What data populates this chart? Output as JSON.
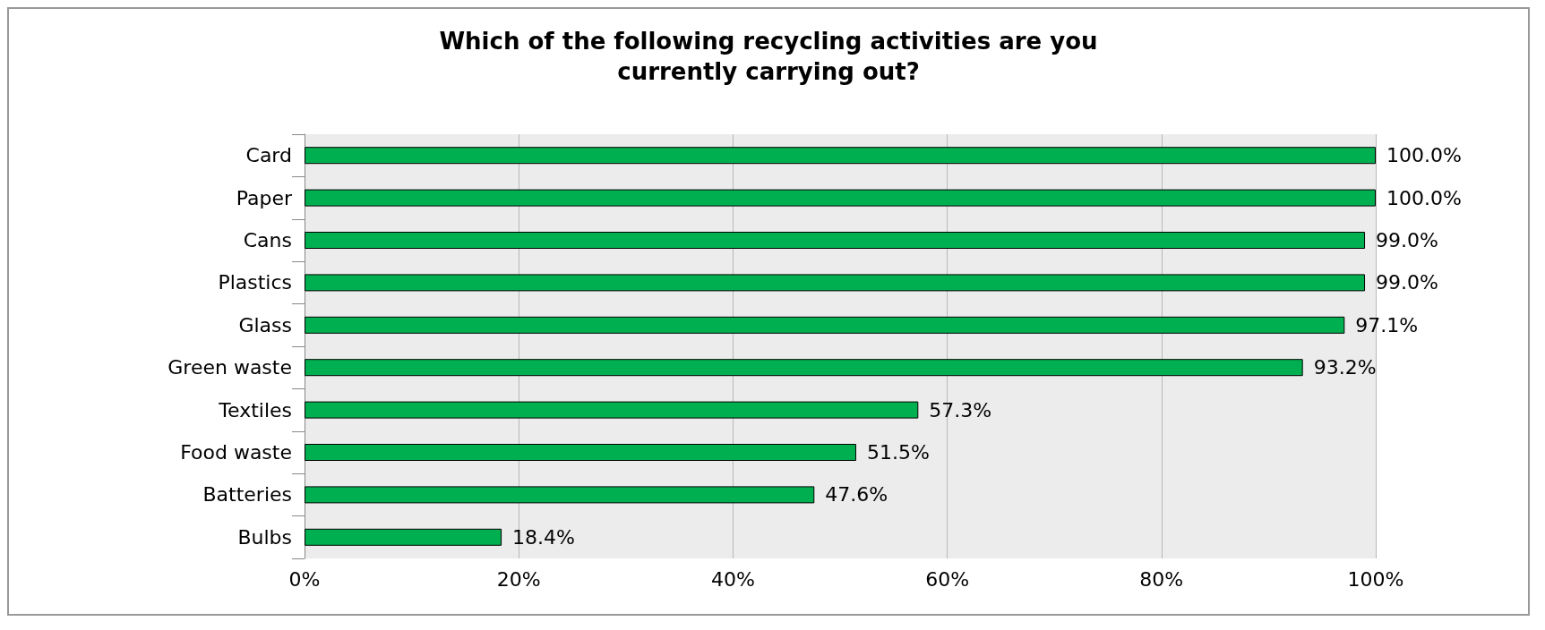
{
  "chart_data": {
    "type": "bar",
    "orientation": "horizontal",
    "title": "Which of the following recycling activities are you\ncurrently carrying out?",
    "categories": [
      "Card",
      "Paper",
      "Cans",
      "Plastics",
      "Glass",
      "Green waste",
      "Textiles",
      "Food waste",
      "Batteries",
      "Bulbs"
    ],
    "values": [
      100,
      100,
      99,
      99,
      97.1,
      93.2,
      57.3,
      51.5,
      47.6,
      18.4
    ],
    "value_labels": [
      "100.0%",
      "100.0%",
      "99.0%",
      "99.0%",
      "97.1%",
      "93.2%",
      "57.3%",
      "51.5%",
      "47.6%",
      "18.4%"
    ],
    "color": "#00b050",
    "xlim": [
      0,
      100
    ],
    "xticks": [
      {
        "value": 0,
        "label": "0%"
      },
      {
        "value": 20,
        "label": "20%"
      },
      {
        "value": 40,
        "label": "40%"
      },
      {
        "value": 60,
        "label": "60%"
      },
      {
        "value": 80,
        "label": "80%"
      },
      {
        "value": 100,
        "label": "100%"
      }
    ],
    "grid": "x"
  }
}
